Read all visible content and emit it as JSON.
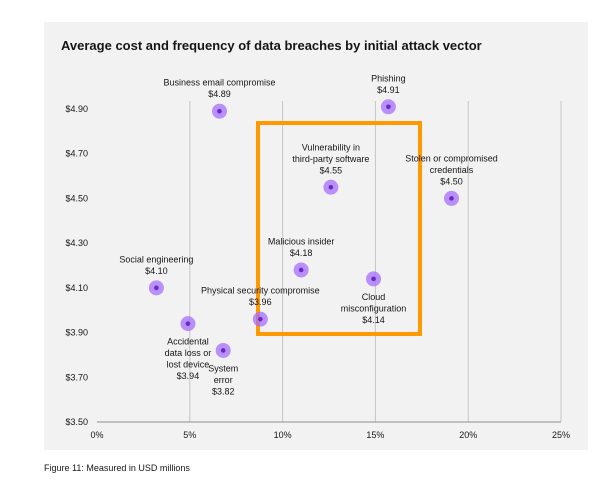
{
  "page": {
    "caption": "Figure 11: Measured in USD millions"
  },
  "colors": {
    "panel": "#f2f2f2",
    "grid": "#c6c6c6",
    "point_halo": "#a56eff",
    "point_core": "#6929c4",
    "highlight_box": "#ff9900"
  },
  "chart_data": {
    "type": "scatter",
    "title": "Average cost and frequency of data breaches by initial attack vector",
    "xlabel": "",
    "ylabel": "",
    "xlim": [
      0,
      25
    ],
    "ylim": [
      3.5,
      4.9
    ],
    "x_ticks": [
      0,
      5,
      10,
      15,
      20,
      25
    ],
    "x_tick_labels": [
      "0%",
      "5%",
      "10%",
      "15%",
      "20%",
      "25%"
    ],
    "y_ticks": [
      3.5,
      3.7,
      3.9,
      4.1,
      4.3,
      4.5,
      4.7,
      4.9
    ],
    "y_tick_labels": [
      "$3.50",
      "$3.70",
      "$3.90",
      "$4.10",
      "$4.30",
      "$4.50",
      "$4.70",
      "$4.90"
    ],
    "grid": "vertical",
    "points": [
      {
        "name_lines": [
          "Business email compromise"
        ],
        "value_label": "$4.89",
        "x": 6.6,
        "y": 4.89,
        "label_pos": "above"
      },
      {
        "name_lines": [
          "Phishing"
        ],
        "value_label": "$4.91",
        "x": 15.7,
        "y": 4.91,
        "label_pos": "above"
      },
      {
        "name_lines": [
          "Vulnerability in",
          "third-party software"
        ],
        "value_label": "$4.55",
        "x": 12.6,
        "y": 4.55,
        "label_pos": "above"
      },
      {
        "name_lines": [
          "Stolen or compromised",
          "credentials"
        ],
        "value_label": "$4.50",
        "x": 19.1,
        "y": 4.5,
        "label_pos": "above"
      },
      {
        "name_lines": [
          "Malicious insider"
        ],
        "value_label": "$4.18",
        "x": 11.0,
        "y": 4.18,
        "label_pos": "above"
      },
      {
        "name_lines": [
          "Social engineering"
        ],
        "value_label": "$4.10",
        "x": 3.2,
        "y": 4.1,
        "label_pos": "above"
      },
      {
        "name_lines": [
          "Cloud",
          "misconfiguration"
        ],
        "value_label": "$4.14",
        "x": 14.9,
        "y": 4.14,
        "label_pos": "below"
      },
      {
        "name_lines": [
          "Physical security compromise"
        ],
        "value_label": "$3.96",
        "x": 8.8,
        "y": 3.96,
        "label_pos": "above"
      },
      {
        "name_lines": [
          "Accidental",
          "data loss or",
          "lost device"
        ],
        "value_label": "$3.94",
        "x": 4.9,
        "y": 3.94,
        "label_pos": "below"
      },
      {
        "name_lines": [
          "System",
          "error"
        ],
        "value_label": "$3.82",
        "x": 6.8,
        "y": 3.82,
        "label_pos": "below"
      }
    ]
  }
}
